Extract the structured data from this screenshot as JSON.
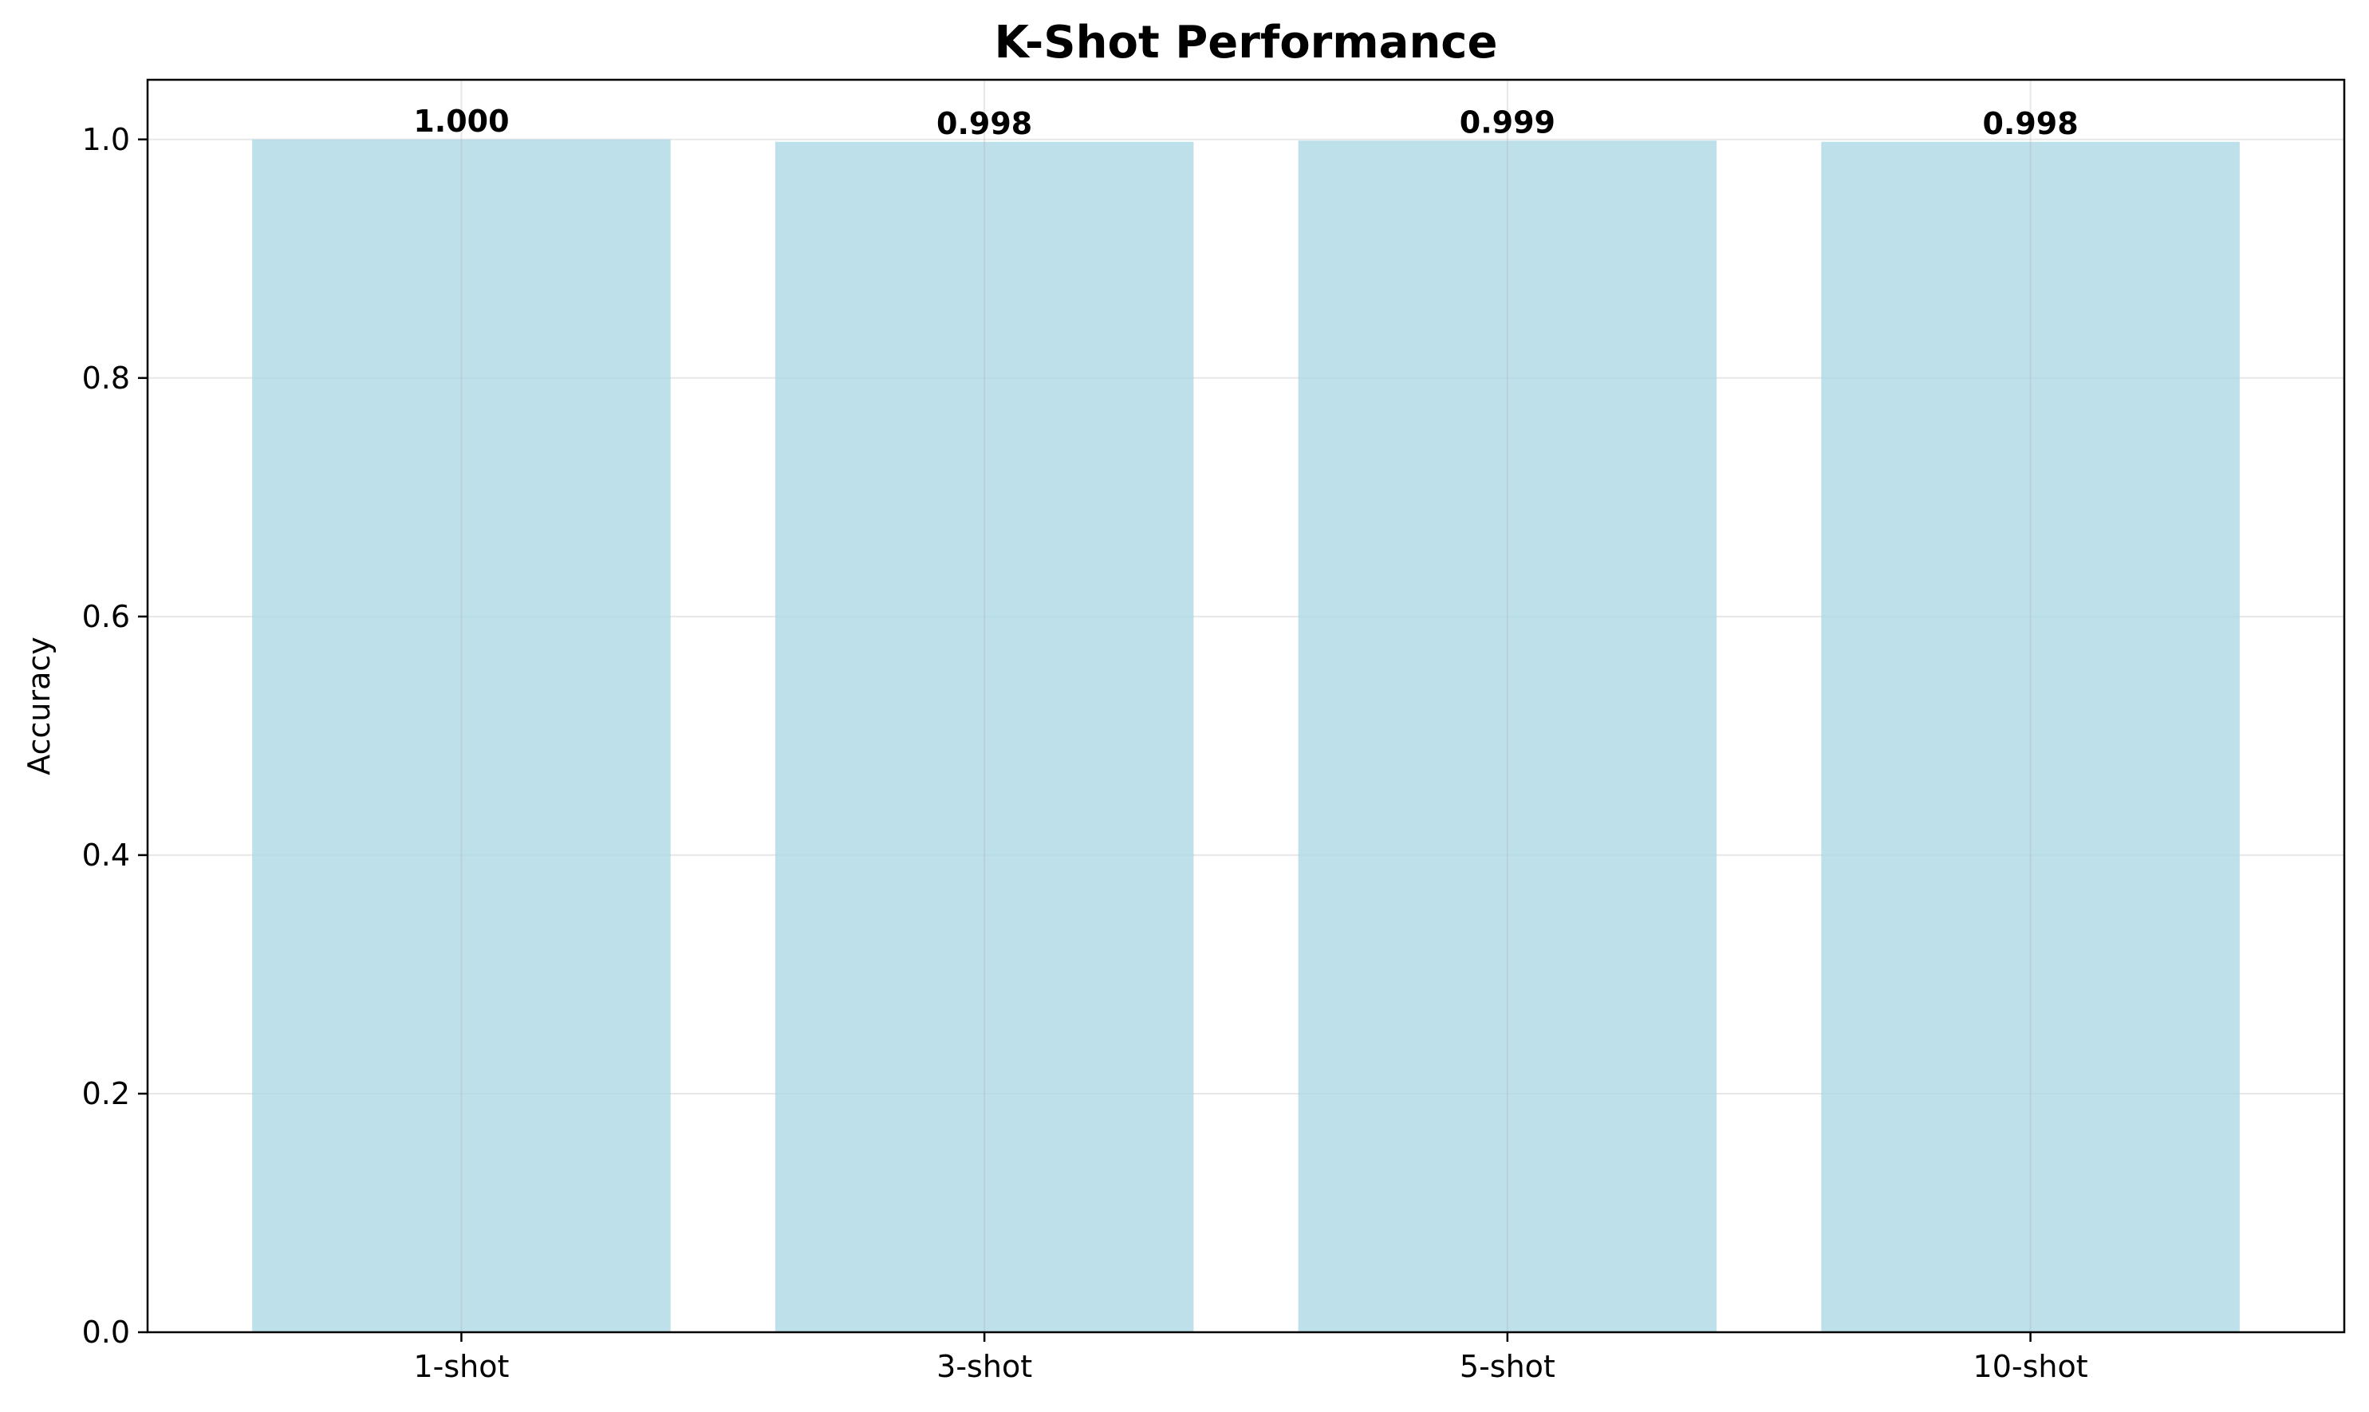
{
  "chart_data": {
    "type": "bar",
    "title": "K-Shot Performance",
    "xlabel": "",
    "ylabel": "Accuracy",
    "categories": [
      "1-shot",
      "3-shot",
      "5-shot",
      "10-shot"
    ],
    "values": [
      1.0,
      0.998,
      0.999,
      0.998
    ],
    "value_labels": [
      "1.000",
      "0.998",
      "0.999",
      "0.998"
    ],
    "ylim": [
      0,
      1.05
    ],
    "yticks": [
      0.0,
      0.2,
      0.4,
      0.6,
      0.8,
      1.0
    ],
    "ytick_labels": [
      "0.0",
      "0.2",
      "0.4",
      "0.6",
      "0.8",
      "1.0"
    ],
    "grid": true,
    "bar_color": "#add8e6",
    "bar_alpha": 0.8
  }
}
